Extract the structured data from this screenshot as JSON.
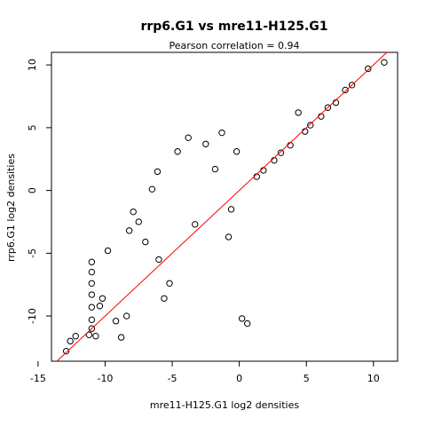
{
  "chart_data": {
    "type": "scatter",
    "title": "rrp6.G1 vs mre11-H125.G1",
    "subtitle": "Pearson correlation =  0.94",
    "xlabel": "mre11-H125.G1 log2 densities",
    "ylabel": "rrp6.G1 log2 densities",
    "xlim": [
      -14.0,
      11.8
    ],
    "ylim": [
      -13.6,
      11.0
    ],
    "xticks": [
      -15,
      -10,
      -5,
      0,
      5,
      10
    ],
    "yticks": [
      -10,
      -5,
      0,
      5,
      10
    ],
    "grid": false,
    "legend": "none",
    "point_color": "#000000",
    "fit_line": {
      "color": "#ff0000",
      "slope": 1.0,
      "intercept": 0.0
    },
    "series": [
      {
        "points": [
          [
            -12.9,
            -12.8
          ],
          [
            -12.6,
            -12.0
          ],
          [
            -12.2,
            -11.6
          ],
          [
            -11.2,
            -11.5
          ],
          [
            -11.0,
            -11.0
          ],
          [
            -11.0,
            -10.3
          ],
          [
            -11.0,
            -9.3
          ],
          [
            -11.0,
            -8.3
          ],
          [
            -11.0,
            -7.4
          ],
          [
            -11.0,
            -6.5
          ],
          [
            -11.0,
            -5.7
          ],
          [
            -10.7,
            -11.6
          ],
          [
            -10.4,
            -9.2
          ],
          [
            -10.2,
            -8.6
          ],
          [
            -9.8,
            -4.8
          ],
          [
            -9.2,
            -10.4
          ],
          [
            -8.8,
            -11.7
          ],
          [
            -8.4,
            -10.0
          ],
          [
            -8.2,
            -3.2
          ],
          [
            -7.9,
            -1.7
          ],
          [
            -7.5,
            -2.5
          ],
          [
            -7.0,
            -4.1
          ],
          [
            -6.5,
            0.1
          ],
          [
            -6.1,
            1.5
          ],
          [
            -6.0,
            -5.5
          ],
          [
            -5.6,
            -8.6
          ],
          [
            -5.2,
            -7.4
          ],
          [
            -4.6,
            3.1
          ],
          [
            -3.8,
            4.2
          ],
          [
            -3.3,
            -2.7
          ],
          [
            -2.5,
            3.7
          ],
          [
            -1.8,
            1.7
          ],
          [
            -1.3,
            4.6
          ],
          [
            -0.8,
            -3.7
          ],
          [
            -0.6,
            -1.5
          ],
          [
            -0.2,
            3.1
          ],
          [
            0.2,
            -10.2
          ],
          [
            0.6,
            -10.6
          ],
          [
            1.3,
            1.1
          ],
          [
            1.8,
            1.6
          ],
          [
            2.6,
            2.4
          ],
          [
            3.1,
            3.0
          ],
          [
            3.8,
            3.6
          ],
          [
            4.4,
            6.2
          ],
          [
            4.9,
            4.7
          ],
          [
            5.3,
            5.2
          ],
          [
            6.1,
            5.9
          ],
          [
            6.6,
            6.6
          ],
          [
            7.2,
            7.0
          ],
          [
            7.9,
            8.0
          ],
          [
            8.4,
            8.4
          ],
          [
            9.6,
            9.7
          ],
          [
            10.8,
            10.2
          ]
        ]
      }
    ]
  }
}
